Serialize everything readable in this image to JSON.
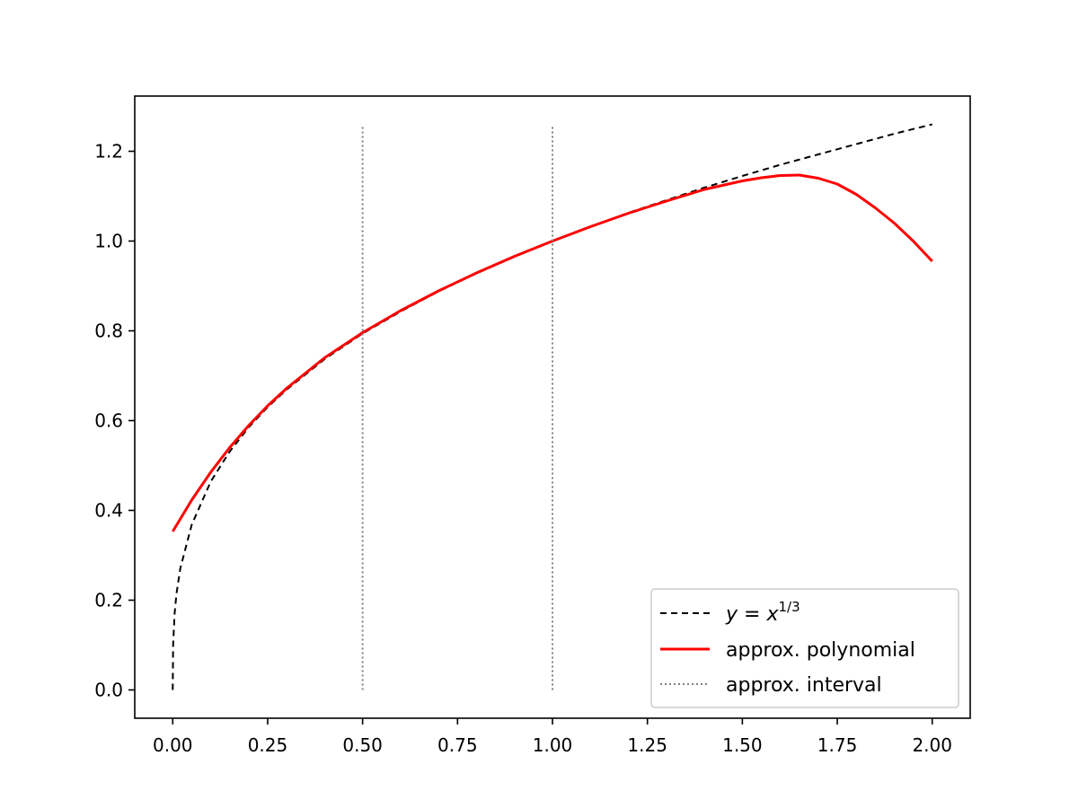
{
  "chart_data": {
    "type": "line",
    "title": "",
    "xlabel": "",
    "ylabel": "",
    "xlim": [
      -0.1,
      2.1
    ],
    "ylim": [
      -0.063,
      1.323
    ],
    "x_ticks": [
      "0.00",
      "0.25",
      "0.50",
      "0.75",
      "1.00",
      "1.25",
      "1.50",
      "1.75",
      "2.00"
    ],
    "y_ticks": [
      "0.0",
      "0.2",
      "0.4",
      "0.6",
      "0.8",
      "1.0",
      "1.2"
    ],
    "grid": false,
    "legend_position": "lower right",
    "series": [
      {
        "name": "y = x^(1/3)",
        "style": "dashed",
        "color": "#000000",
        "x": [
          0.0,
          0.001,
          0.005,
          0.01,
          0.02,
          0.05,
          0.1,
          0.15,
          0.2,
          0.25,
          0.3,
          0.4,
          0.5,
          0.6,
          0.7,
          0.8,
          0.9,
          1.0,
          1.1,
          1.2,
          1.3,
          1.4,
          1.5,
          1.6,
          1.7,
          1.8,
          1.9,
          2.0
        ],
        "y": [
          0.0,
          0.1,
          0.171,
          0.215,
          0.271,
          0.368,
          0.464,
          0.531,
          0.585,
          0.63,
          0.669,
          0.737,
          0.794,
          0.843,
          0.888,
          0.928,
          0.965,
          1.0,
          1.032,
          1.063,
          1.091,
          1.119,
          1.145,
          1.17,
          1.193,
          1.216,
          1.239,
          1.26
        ]
      },
      {
        "name": "approx. polynomial",
        "style": "solid",
        "color": "#ff0000",
        "x": [
          0.0,
          0.05,
          0.1,
          0.15,
          0.2,
          0.25,
          0.3,
          0.4,
          0.5,
          0.6,
          0.7,
          0.8,
          0.9,
          1.0,
          1.1,
          1.2,
          1.3,
          1.4,
          1.5,
          1.55,
          1.6,
          1.65,
          1.7,
          1.75,
          1.8,
          1.85,
          1.9,
          1.95,
          2.0
        ],
        "y": [
          0.353,
          0.423,
          0.485,
          0.54,
          0.589,
          0.633,
          0.672,
          0.74,
          0.796,
          0.845,
          0.889,
          0.929,
          0.966,
          1.0,
          1.032,
          1.062,
          1.089,
          1.115,
          1.134,
          1.141,
          1.146,
          1.147,
          1.14,
          1.127,
          1.104,
          1.074,
          1.04,
          1.0,
          0.955
        ]
      },
      {
        "name": "approx. interval",
        "style": "dotted",
        "color": "#808080",
        "vlines": [
          0.5,
          1.0
        ],
        "y_range": [
          0.0,
          1.26
        ]
      }
    ]
  },
  "legend": {
    "entries": [
      {
        "label_prefix": "y = x",
        "label_sup": "1/3"
      },
      {
        "label": "approx. polynomial"
      },
      {
        "label": "approx. interval"
      }
    ]
  }
}
